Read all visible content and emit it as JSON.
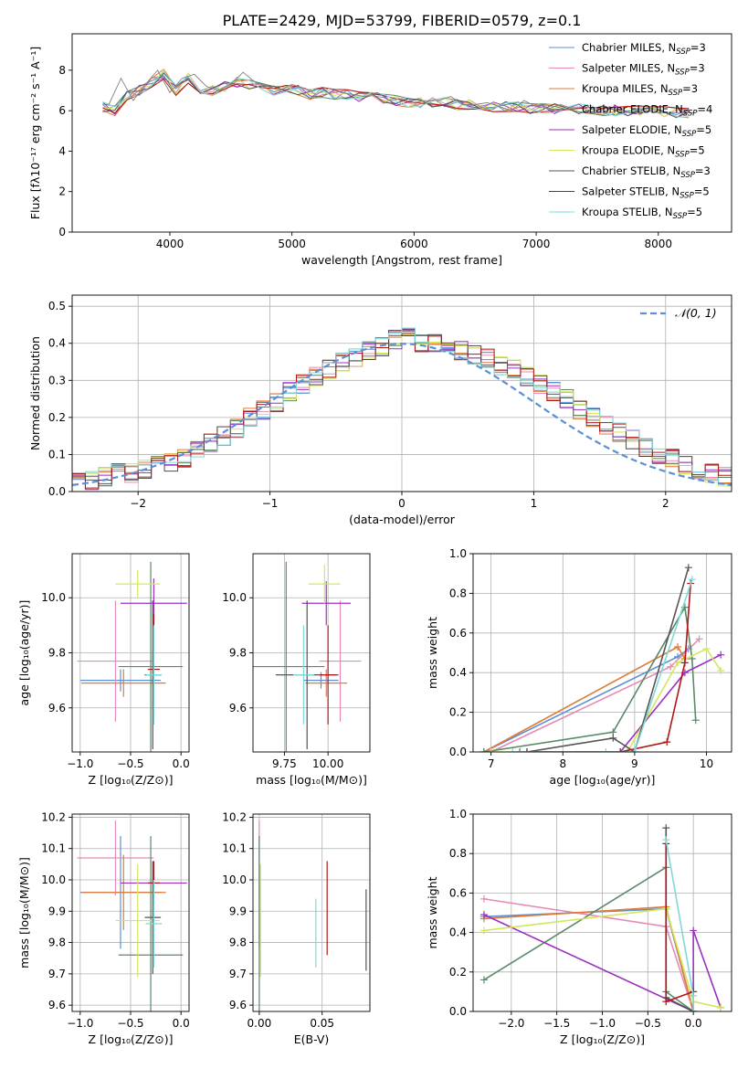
{
  "figure": {
    "title": "PLATE=2429, MJD=53799, FIBERID=0579, z=0.1"
  },
  "series_styles": [
    {
      "name": "Chabrier MILES, N_SSP=3",
      "label_main": "Chabrier MILES, N",
      "label_sub": "SSP",
      "label_tail": "=3",
      "color": "#5b8fd6"
    },
    {
      "name": "Salpeter MILES, N_SSP=3",
      "label_main": "Salpeter MILES, N",
      "label_sub": "SSP",
      "label_tail": "=3",
      "color": "#e58bb5"
    },
    {
      "name": "Kroupa MILES, N_SSP=3",
      "label_main": "Kroupa MILES, N",
      "label_sub": "SSP",
      "label_tail": "=3",
      "color": "#e07b39"
    },
    {
      "name": "Chabrier ELODIE, N_SSP=4",
      "label_main": "Chabrier ELODIE, N",
      "label_sub": "SSP",
      "label_tail": "=4",
      "color": "#5a8a68"
    },
    {
      "name": "Salpeter ELODIE, N_SSP=5",
      "label_main": "Salpeter ELODIE, N",
      "label_sub": "SSP",
      "label_tail": "=5",
      "color": "#9b30c0"
    },
    {
      "name": "Kroupa ELODIE, N_SSP=5",
      "label_main": "Kroupa ELODIE, N",
      "label_sub": "SSP",
      "label_tail": "=5",
      "color": "#d4e65a"
    },
    {
      "name": "Chabrier STELIB, N_SSP=3",
      "label_main": "Chabrier STELIB, N",
      "label_sub": "SSP",
      "label_tail": "=3",
      "color": "#555555"
    },
    {
      "name": "Salpeter STELIB, N_SSP=5",
      "label_main": "Salpeter STELIB, N",
      "label_sub": "SSP",
      "label_tail": "=5",
      "color": "#b01818"
    },
    {
      "name": "Kroupa STELIB, N_SSP=5",
      "label_main": "Kroupa STELIB, N",
      "label_sub": "SSP",
      "label_tail": "=5",
      "color": "#7fd8d8"
    }
  ],
  "chart_data": [
    {
      "id": "spectrum",
      "type": "line",
      "title": "PLATE=2429, MJD=53799, FIBERID=0579, z=0.1",
      "xlabel": "wavelength [Angstrom, rest frame]",
      "ylabel": "Flux [fλ10⁻¹⁷ erg cm⁻² s⁻¹ A⁻¹]",
      "xlim": [
        3200,
        8600
      ],
      "ylim": [
        0,
        9.8
      ],
      "xticks": [
        4000,
        5000,
        6000,
        7000,
        8000
      ],
      "yticks": [
        0,
        2,
        4,
        6,
        8
      ],
      "legend": "upper right",
      "grid": false,
      "data_series_color": "#808080",
      "data_x": [
        3500,
        3600,
        3700,
        3800,
        3900,
        4000,
        4100,
        4200,
        4300,
        4400,
        4500,
        4600,
        4700,
        4800,
        4900,
        5000,
        5100,
        5200,
        5300,
        5400,
        5500,
        5600,
        5700,
        5800,
        5900,
        6000,
        6100,
        6200,
        6300,
        6400,
        6500,
        6600,
        6700,
        6800,
        6900,
        7000,
        7100,
        7200,
        7300,
        7400,
        7500,
        7600,
        7700,
        7800,
        7900,
        8000,
        8100,
        8200,
        8300
      ],
      "data_y": [
        6.3,
        7.6,
        6.5,
        7.3,
        8.0,
        6.9,
        7.6,
        7.8,
        7.2,
        7.0,
        7.3,
        7.9,
        7.4,
        7.2,
        7.0,
        7.3,
        7.1,
        6.8,
        7.1,
        6.9,
        6.8,
        6.7,
        6.9,
        6.5,
        6.6,
        6.4,
        6.5,
        6.5,
        6.7,
        6.3,
        6.3,
        6.4,
        6.2,
        6.0,
        6.5,
        6.2,
        6.1,
        6.3,
        6.1,
        6.2,
        6.0,
        6.2,
        6.0,
        6.0,
        6.0,
        5.9,
        5.9,
        5.9,
        5.9
      ],
      "model_x": [
        3450,
        3550,
        3650,
        3750,
        3850,
        3950,
        4050,
        4150,
        4250,
        4350,
        4450,
        4550,
        4650,
        4750,
        4850,
        4950,
        5050,
        5150,
        5250,
        5350,
        5450,
        5550,
        5650,
        5750,
        5850,
        5950,
        6050,
        6150,
        6250,
        6350,
        6450,
        6550,
        6650,
        6750,
        6850,
        6950,
        7050,
        7150,
        7250,
        7350,
        7450,
        7550,
        7650,
        7750,
        7850,
        7950,
        8050,
        8150,
        8250
      ],
      "model_y": [
        6.2,
        6.0,
        6.7,
        7.0,
        7.4,
        7.8,
        7.0,
        7.6,
        7.1,
        7.0,
        7.2,
        7.4,
        7.3,
        7.1,
        7.0,
        7.1,
        7.0,
        6.8,
        6.9,
        6.8,
        6.8,
        6.7,
        6.7,
        6.6,
        6.5,
        6.4,
        6.4,
        6.4,
        6.4,
        6.3,
        6.3,
        6.3,
        6.2,
        6.2,
        6.2,
        6.1,
        6.1,
        6.1,
        6.1,
        6.1,
        6.1,
        6.0,
        6.0,
        6.0,
        6.0,
        5.95,
        5.95,
        5.9,
        5.9
      ]
    },
    {
      "id": "residuals",
      "type": "line",
      "xlabel": "(data-model)/error",
      "ylabel": "Normed distribution",
      "xlim": [
        -2.5,
        2.5
      ],
      "ylim": [
        0,
        0.53
      ],
      "xticks": [
        -2,
        -1,
        0,
        1,
        2
      ],
      "yticks": [
        0.0,
        0.1,
        0.2,
        0.3,
        0.4,
        0.5
      ],
      "grid": true,
      "legend": "upper right",
      "reference_curve": {
        "name": "𝒩(0, 1)",
        "mean": 0,
        "sigma": 1,
        "color": "#5b8fd6",
        "dash": true
      },
      "bin_width": 0.1,
      "bin_start": -2.5,
      "hist_values": [
        0.03,
        0.03,
        0.04,
        0.05,
        0.05,
        0.06,
        0.07,
        0.08,
        0.09,
        0.11,
        0.13,
        0.15,
        0.17,
        0.2,
        0.22,
        0.24,
        0.27,
        0.29,
        0.31,
        0.33,
        0.35,
        0.36,
        0.38,
        0.39,
        0.41,
        0.43,
        0.4,
        0.4,
        0.39,
        0.38,
        0.37,
        0.36,
        0.34,
        0.33,
        0.31,
        0.29,
        0.27,
        0.25,
        0.22,
        0.2,
        0.18,
        0.16,
        0.14,
        0.12,
        0.1,
        0.09,
        0.07,
        0.06,
        0.05,
        0.04
      ]
    },
    {
      "id": "age-vs-Z",
      "type": "scatter",
      "xlabel": "Z [log₁₀(Z/Z⊙)]",
      "ylabel": "age  [log₁₀(age/yr)]",
      "xlim": [
        -1.08,
        0.08
      ],
      "ylim": [
        9.44,
        10.16
      ],
      "xticks": [
        -1.0,
        -0.5,
        0.0
      ],
      "yticks": [
        9.6,
        9.8,
        10.0
      ],
      "grid": true,
      "points": [
        {
          "series": 0,
          "x": -0.6,
          "y": 9.7,
          "xerr": 0.4,
          "yerr": 0.04
        },
        {
          "series": 1,
          "x": -0.65,
          "y": 9.77,
          "xerr": 0.38,
          "yerr": 0.22
        },
        {
          "series": 2,
          "x": -0.57,
          "y": 9.69,
          "xerr": 0.42,
          "yerr": 0.05
        },
        {
          "series": 3,
          "x": -0.3,
          "y": 9.75,
          "xerr": 0.32,
          "yerr": 0.38
        },
        {
          "series": 4,
          "x": -0.27,
          "y": 9.98,
          "xerr": 0.33,
          "yerr": 0.09
        },
        {
          "series": 5,
          "x": -0.43,
          "y": 10.05,
          "xerr": 0.22,
          "yerr": 0.05
        },
        {
          "series": 6,
          "x": -0.28,
          "y": 9.72,
          "xerr": 0.08,
          "yerr": 0.27
        },
        {
          "series": 7,
          "x": -0.27,
          "y": 9.74,
          "xerr": 0.06,
          "yerr": 0.2
        },
        {
          "series": 8,
          "x": -0.27,
          "y": 9.72,
          "xerr": 0.08,
          "yerr": 0.18
        }
      ]
    },
    {
      "id": "age-vs-mass",
      "type": "scatter",
      "xlabel": "mass [log₁₀(M/M⊙)]",
      "ylabel": "",
      "xlim": [
        9.57,
        10.24
      ],
      "ylim": [
        9.44,
        10.16
      ],
      "xticks": [
        9.75,
        10.0
      ],
      "yticks": [
        9.6,
        9.8,
        10.0
      ],
      "grid": true,
      "points": [
        {
          "series": 0,
          "x": 9.96,
          "y": 9.7,
          "xerr": 0.1,
          "yerr": 0.03
        },
        {
          "series": 1,
          "x": 10.07,
          "y": 9.77,
          "xerr": 0.12,
          "yerr": 0.22
        },
        {
          "series": 2,
          "x": 9.99,
          "y": 9.69,
          "xerr": 0.12,
          "yerr": 0.05
        },
        {
          "series": 3,
          "x": 9.76,
          "y": 9.75,
          "xerr": 0.22,
          "yerr": 0.38
        },
        {
          "series": 4,
          "x": 9.99,
          "y": 9.98,
          "xerr": 0.14,
          "yerr": 0.08
        },
        {
          "series": 5,
          "x": 9.98,
          "y": 10.05,
          "xerr": 0.09,
          "yerr": 0.07
        },
        {
          "series": 6,
          "x": 9.88,
          "y": 9.72,
          "xerr": 0.18,
          "yerr": 0.27
        },
        {
          "series": 7,
          "x": 10.0,
          "y": 9.72,
          "xerr": 0.05,
          "yerr": 0.18
        },
        {
          "series": 8,
          "x": 9.86,
          "y": 9.72,
          "xerr": 0.06,
          "yerr": 0.18
        }
      ]
    },
    {
      "id": "weight-vs-age",
      "type": "line",
      "xlabel": "age  [log₁₀(age/yr)]",
      "ylabel": "mass weight",
      "xlim": [
        6.75,
        10.35
      ],
      "ylim": [
        0,
        1.0
      ],
      "xticks": [
        7,
        8,
        9,
        10
      ],
      "yticks": [
        0.0,
        0.2,
        0.4,
        0.6,
        0.8,
        1.0
      ],
      "grid": true,
      "series": [
        {
          "series": 0,
          "x": [
            6.9,
            9.6,
            9.75
          ],
          "y": [
            0.0,
            0.48,
            0.52
          ]
        },
        {
          "series": 1,
          "x": [
            7.0,
            9.5,
            9.9
          ],
          "y": [
            0.0,
            0.43,
            0.57
          ]
        },
        {
          "series": 2,
          "x": [
            6.9,
            9.6,
            9.7
          ],
          "y": [
            0.0,
            0.53,
            0.47
          ]
        },
        {
          "series": 3,
          "x": [
            6.9,
            8.7,
            9.7,
            9.8,
            9.85
          ],
          "y": [
            0.0,
            0.1,
            0.73,
            0.47,
            0.16
          ]
        },
        {
          "series": 4,
          "x": [
            7.4,
            8.8,
            9.7,
            10.2
          ],
          "y": [
            0.0,
            0.0,
            0.4,
            0.49
          ]
        },
        {
          "series": 5,
          "x": [
            7.0,
            8.9,
            9.6,
            10.0,
            10.2
          ],
          "y": [
            0.0,
            0.0,
            0.45,
            0.52,
            0.41
          ]
        },
        {
          "series": 6,
          "x": [
            7.5,
            8.7,
            9.0,
            9.75
          ],
          "y": [
            0.0,
            0.07,
            0.0,
            0.93
          ]
        },
        {
          "series": 7,
          "x": [
            7.5,
            8.8,
            9.45,
            9.7,
            9.78
          ],
          "y": [
            0.0,
            0.0,
            0.05,
            0.45,
            0.85
          ]
        },
        {
          "series": 8,
          "x": [
            7.3,
            8.6,
            9.0,
            9.8
          ],
          "y": [
            0.0,
            0.0,
            0.0,
            0.87
          ]
        }
      ]
    },
    {
      "id": "mass-vs-Z",
      "type": "scatter",
      "xlabel": "Z [log₁₀(Z/Z⊙)]",
      "ylabel": "mass [log₁₀(M/M⊙)]",
      "xlim": [
        -1.08,
        0.08
      ],
      "ylim": [
        9.58,
        10.21
      ],
      "xticks": [
        -1.0,
        -0.5,
        0.0
      ],
      "yticks": [
        9.6,
        9.7,
        9.8,
        9.9,
        10.0,
        10.1,
        10.2
      ],
      "grid": true,
      "points": [
        {
          "series": 0,
          "x": -0.6,
          "y": 9.96,
          "xerr": 0.4,
          "yerr": 0.18
        },
        {
          "series": 1,
          "x": -0.65,
          "y": 10.07,
          "xerr": 0.38,
          "yerr": 0.12
        },
        {
          "series": 2,
          "x": -0.57,
          "y": 9.96,
          "xerr": 0.42,
          "yerr": 0.12
        },
        {
          "series": 3,
          "x": -0.3,
          "y": 9.76,
          "xerr": 0.32,
          "yerr": 0.38
        },
        {
          "series": 4,
          "x": -0.27,
          "y": 9.99,
          "xerr": 0.33,
          "yerr": 0.03
        },
        {
          "series": 5,
          "x": -0.43,
          "y": 9.87,
          "xerr": 0.22,
          "yerr": 0.18
        },
        {
          "series": 6,
          "x": -0.28,
          "y": 9.88,
          "xerr": 0.08,
          "yerr": 0.18
        },
        {
          "series": 7,
          "x": -0.27,
          "y": 9.99,
          "xerr": 0.06,
          "yerr": 0.07
        },
        {
          "series": 8,
          "x": -0.27,
          "y": 9.86,
          "xerr": 0.08,
          "yerr": 0.14
        }
      ]
    },
    {
      "id": "mass-vs-EBV",
      "type": "scatter",
      "xlabel": "E(B-V)",
      "ylabel": "",
      "xlim": [
        -0.005,
        0.088
      ],
      "ylim": [
        9.58,
        10.21
      ],
      "xticks": [
        0.0,
        0.05
      ],
      "yticks": [
        9.6,
        9.7,
        9.8,
        9.9,
        10.0,
        10.1,
        10.2
      ],
      "grid": true,
      "points": [
        {
          "series": 0,
          "x": 0.0,
          "y": 9.96,
          "xerr": 0.0,
          "yerr": 0.18
        },
        {
          "series": 1,
          "x": 0.0,
          "y": 10.07,
          "xerr": 0.0,
          "yerr": 0.12
        },
        {
          "series": 3,
          "x": 0.0,
          "y": 9.76,
          "xerr": 0.0,
          "yerr": 0.38
        },
        {
          "series": 5,
          "x": 0.001,
          "y": 9.87,
          "xerr": 0.0,
          "yerr": 0.18
        },
        {
          "series": 8,
          "x": 0.045,
          "y": 9.83,
          "xerr": 0.0,
          "yerr": 0.11
        },
        {
          "series": 7,
          "x": 0.054,
          "y": 9.91,
          "xerr": 0.0,
          "yerr": 0.15
        },
        {
          "series": 6,
          "x": 0.085,
          "y": 9.84,
          "xerr": 0.0,
          "yerr": 0.13
        }
      ]
    },
    {
      "id": "weight-vs-Z",
      "type": "line",
      "xlabel": "Z [log₁₀(Z/Z⊙)]",
      "ylabel": "mass weight",
      "xlim": [
        -2.42,
        0.42
      ],
      "ylim": [
        0,
        1.0
      ],
      "xticks": [
        -2.0,
        -1.5,
        -1.0,
        -0.5,
        0.0
      ],
      "yticks": [
        0.0,
        0.2,
        0.4,
        0.6,
        0.8,
        1.0
      ],
      "grid": true,
      "series": [
        {
          "series": 0,
          "x": [
            -2.3,
            -0.3,
            0.0
          ],
          "y": [
            0.48,
            0.52,
            0.0
          ]
        },
        {
          "series": 1,
          "x": [
            -2.3,
            -0.3,
            0.0
          ],
          "y": [
            0.57,
            0.43,
            0.0
          ]
        },
        {
          "series": 2,
          "x": [
            -2.3,
            -0.3,
            0.0
          ],
          "y": [
            0.47,
            0.53,
            0.0
          ]
        },
        {
          "series": 3,
          "x": [
            -2.3,
            -0.3,
            -0.3,
            0.0
          ],
          "y": [
            0.16,
            0.73,
            0.1,
            0.0
          ]
        },
        {
          "series": 4,
          "x": [
            -2.3,
            0.0,
            0.0,
            0.3
          ],
          "y": [
            0.49,
            0.0,
            0.41,
            0.02
          ]
        },
        {
          "series": 5,
          "x": [
            -2.3,
            -0.3,
            0.0,
            0.3
          ],
          "y": [
            0.41,
            0.52,
            0.05,
            0.02
          ]
        },
        {
          "series": 6,
          "x": [
            -0.3,
            -0.3,
            0.0
          ],
          "y": [
            0.93,
            0.07,
            0.0
          ]
        },
        {
          "series": 7,
          "x": [
            -0.3,
            -0.3,
            0.0
          ],
          "y": [
            0.85,
            0.05,
            0.1
          ]
        },
        {
          "series": 8,
          "x": [
            -0.3,
            0.0,
            0.0
          ],
          "y": [
            0.87,
            0.08,
            0.0
          ]
        }
      ]
    }
  ]
}
